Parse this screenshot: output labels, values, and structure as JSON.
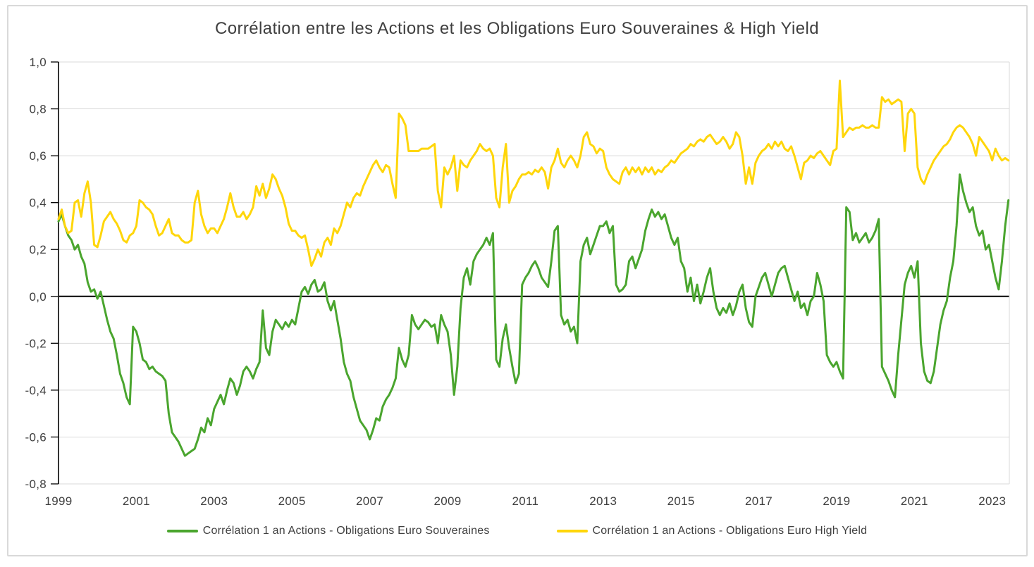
{
  "title": "Corrélation entre les Actions et les Obligations Euro Souveraines & High Yield",
  "chart_data": {
    "type": "line",
    "title": "Corrélation entre les Actions et les Obligations Euro Souveraines & High Yield",
    "xlabel": "",
    "ylabel": "",
    "grid": "horizontal",
    "legend_position": "bottom",
    "xlim": [
      1999,
      2023.44
    ],
    "ylim": [
      -0.8,
      1.0
    ],
    "x_start": 1999,
    "x_step": 0.0833333,
    "grid_color": "#d9d9d9",
    "zero_line_color": "#000000",
    "axis_color": "#000000",
    "text_color": "#3f3f3f",
    "y_ticks": [
      {
        "value": 1.0,
        "label": "1,0"
      },
      {
        "value": 0.8,
        "label": "0,8"
      },
      {
        "value": 0.6,
        "label": "0,6"
      },
      {
        "value": 0.4,
        "label": "0,4"
      },
      {
        "value": 0.2,
        "label": "0,2"
      },
      {
        "value": 0.0,
        "label": "0,0"
      },
      {
        "value": -0.2,
        "label": "-0,2"
      },
      {
        "value": -0.4,
        "label": "-0,4"
      },
      {
        "value": -0.6,
        "label": "-0,6"
      },
      {
        "value": -0.8,
        "label": "-0,8"
      }
    ],
    "x_ticks": [
      {
        "value": 1999,
        "label": "1999"
      },
      {
        "value": 2001,
        "label": "2001"
      },
      {
        "value": 2003,
        "label": "2003"
      },
      {
        "value": 2005,
        "label": "2005"
      },
      {
        "value": 2007,
        "label": "2007"
      },
      {
        "value": 2009,
        "label": "2009"
      },
      {
        "value": 2011,
        "label": "2011"
      },
      {
        "value": 2013,
        "label": "2013"
      },
      {
        "value": 2015,
        "label": "2015"
      },
      {
        "value": 2017,
        "label": "2017"
      },
      {
        "value": 2019,
        "label": "2019"
      },
      {
        "value": 2021,
        "label": "2021"
      },
      {
        "value": 2023,
        "label": "2023"
      }
    ],
    "series": [
      {
        "id": "souveraines",
        "name": "Corrélation 1 an Actions - Obligations Euro Souveraines",
        "color": "#4aa52e",
        "values": [
          0.32,
          0.35,
          0.3,
          0.26,
          0.24,
          0.2,
          0.22,
          0.17,
          0.14,
          0.06,
          0.02,
          0.03,
          -0.01,
          0.02,
          -0.04,
          -0.1,
          -0.15,
          -0.18,
          -0.25,
          -0.33,
          -0.37,
          -0.43,
          -0.46,
          -0.13,
          -0.15,
          -0.2,
          -0.27,
          -0.28,
          -0.31,
          -0.3,
          -0.32,
          -0.33,
          -0.34,
          -0.36,
          -0.5,
          -0.58,
          -0.6,
          -0.62,
          -0.65,
          -0.68,
          -0.67,
          -0.66,
          -0.65,
          -0.61,
          -0.56,
          -0.58,
          -0.52,
          -0.55,
          -0.48,
          -0.45,
          -0.42,
          -0.46,
          -0.4,
          -0.35,
          -0.37,
          -0.42,
          -0.38,
          -0.32,
          -0.3,
          -0.32,
          -0.35,
          -0.31,
          -0.28,
          -0.06,
          -0.22,
          -0.25,
          -0.15,
          -0.1,
          -0.12,
          -0.14,
          -0.11,
          -0.13,
          -0.1,
          -0.12,
          -0.05,
          0.02,
          0.04,
          0.01,
          0.05,
          0.07,
          0.02,
          0.03,
          0.06,
          -0.02,
          -0.06,
          -0.02,
          -0.1,
          -0.18,
          -0.28,
          -0.33,
          -0.36,
          -0.43,
          -0.48,
          -0.53,
          -0.55,
          -0.57,
          -0.61,
          -0.57,
          -0.52,
          -0.53,
          -0.47,
          -0.44,
          -0.42,
          -0.39,
          -0.35,
          -0.22,
          -0.27,
          -0.3,
          -0.25,
          -0.08,
          -0.12,
          -0.14,
          -0.12,
          -0.1,
          -0.11,
          -0.13,
          -0.12,
          -0.2,
          -0.08,
          -0.12,
          -0.15,
          -0.25,
          -0.42,
          -0.3,
          -0.05,
          0.08,
          0.12,
          0.05,
          0.15,
          0.18,
          0.2,
          0.22,
          0.25,
          0.22,
          0.27,
          -0.27,
          -0.3,
          -0.18,
          -0.12,
          -0.22,
          -0.3,
          -0.37,
          -0.33,
          0.05,
          0.08,
          0.1,
          0.13,
          0.15,
          0.12,
          0.08,
          0.06,
          0.04,
          0.15,
          0.28,
          0.3,
          -0.08,
          -0.12,
          -0.1,
          -0.15,
          -0.13,
          -0.2,
          0.15,
          0.22,
          0.25,
          0.18,
          0.22,
          0.26,
          0.3,
          0.3,
          0.32,
          0.27,
          0.3,
          0.05,
          0.02,
          0.03,
          0.05,
          0.15,
          0.17,
          0.12,
          0.16,
          0.2,
          0.28,
          0.33,
          0.37,
          0.34,
          0.36,
          0.33,
          0.35,
          0.3,
          0.25,
          0.22,
          0.25,
          0.15,
          0.12,
          0.02,
          0.08,
          -0.02,
          0.05,
          -0.03,
          0.02,
          0.08,
          0.12,
          0.02,
          -0.05,
          -0.08,
          -0.05,
          -0.07,
          -0.03,
          -0.08,
          -0.04,
          0.02,
          0.05,
          -0.05,
          -0.11,
          -0.13,
          0.0,
          0.04,
          0.08,
          0.1,
          0.05,
          0.0,
          0.05,
          0.1,
          0.12,
          0.13,
          0.08,
          0.03,
          -0.02,
          0.02,
          -0.05,
          -0.03,
          -0.08,
          -0.02,
          0.0,
          0.1,
          0.05,
          -0.02,
          -0.25,
          -0.28,
          -0.3,
          -0.28,
          -0.32,
          -0.35,
          0.38,
          0.36,
          0.24,
          0.27,
          0.23,
          0.25,
          0.27,
          0.23,
          0.25,
          0.28,
          0.33,
          -0.3,
          -0.33,
          -0.36,
          -0.4,
          -0.43,
          -0.25,
          -0.1,
          0.05,
          0.1,
          0.13,
          0.08,
          0.15,
          -0.2,
          -0.32,
          -0.36,
          -0.37,
          -0.32,
          -0.22,
          -0.12,
          -0.06,
          -0.02,
          0.08,
          0.15,
          0.3,
          0.52,
          0.45,
          0.4,
          0.36,
          0.38,
          0.3,
          0.26,
          0.28,
          0.2,
          0.22,
          0.15,
          0.08,
          0.03,
          0.15,
          0.3,
          0.41
        ]
      },
      {
        "id": "high-yield",
        "name": "Corrélation 1 an Actions - Obligations Euro High Yield",
        "color": "#ffd60a",
        "values": [
          0.33,
          0.37,
          0.3,
          0.27,
          0.28,
          0.4,
          0.41,
          0.34,
          0.44,
          0.49,
          0.4,
          0.22,
          0.21,
          0.26,
          0.32,
          0.34,
          0.36,
          0.33,
          0.31,
          0.28,
          0.24,
          0.23,
          0.26,
          0.27,
          0.3,
          0.41,
          0.4,
          0.38,
          0.37,
          0.35,
          0.3,
          0.26,
          0.27,
          0.3,
          0.33,
          0.27,
          0.26,
          0.26,
          0.24,
          0.23,
          0.23,
          0.24,
          0.4,
          0.45,
          0.35,
          0.3,
          0.27,
          0.29,
          0.29,
          0.27,
          0.3,
          0.33,
          0.38,
          0.44,
          0.38,
          0.34,
          0.34,
          0.36,
          0.33,
          0.35,
          0.38,
          0.47,
          0.43,
          0.48,
          0.42,
          0.46,
          0.52,
          0.5,
          0.46,
          0.43,
          0.38,
          0.31,
          0.28,
          0.28,
          0.26,
          0.25,
          0.26,
          0.2,
          0.13,
          0.16,
          0.2,
          0.17,
          0.23,
          0.25,
          0.22,
          0.29,
          0.27,
          0.3,
          0.35,
          0.4,
          0.38,
          0.42,
          0.44,
          0.43,
          0.47,
          0.5,
          0.53,
          0.56,
          0.58,
          0.55,
          0.53,
          0.56,
          0.55,
          0.48,
          0.42,
          0.78,
          0.76,
          0.73,
          0.62,
          0.62,
          0.62,
          0.62,
          0.63,
          0.63,
          0.63,
          0.64,
          0.65,
          0.45,
          0.38,
          0.55,
          0.52,
          0.55,
          0.6,
          0.45,
          0.58,
          0.56,
          0.55,
          0.58,
          0.6,
          0.62,
          0.65,
          0.63,
          0.62,
          0.63,
          0.6,
          0.42,
          0.38,
          0.55,
          0.65,
          0.4,
          0.45,
          0.47,
          0.5,
          0.52,
          0.52,
          0.53,
          0.52,
          0.54,
          0.53,
          0.55,
          0.53,
          0.46,
          0.55,
          0.58,
          0.63,
          0.57,
          0.55,
          0.58,
          0.6,
          0.58,
          0.55,
          0.6,
          0.68,
          0.7,
          0.65,
          0.64,
          0.61,
          0.63,
          0.62,
          0.55,
          0.52,
          0.5,
          0.49,
          0.48,
          0.53,
          0.55,
          0.52,
          0.55,
          0.53,
          0.55,
          0.52,
          0.55,
          0.53,
          0.55,
          0.52,
          0.54,
          0.53,
          0.55,
          0.56,
          0.58,
          0.57,
          0.59,
          0.61,
          0.62,
          0.63,
          0.65,
          0.64,
          0.66,
          0.67,
          0.66,
          0.68,
          0.69,
          0.67,
          0.65,
          0.66,
          0.68,
          0.66,
          0.63,
          0.65,
          0.7,
          0.68,
          0.6,
          0.48,
          0.55,
          0.48,
          0.57,
          0.6,
          0.62,
          0.63,
          0.65,
          0.63,
          0.66,
          0.64,
          0.66,
          0.63,
          0.62,
          0.64,
          0.6,
          0.55,
          0.5,
          0.57,
          0.58,
          0.6,
          0.59,
          0.61,
          0.62,
          0.6,
          0.58,
          0.56,
          0.62,
          0.63,
          0.92,
          0.68,
          0.7,
          0.72,
          0.71,
          0.72,
          0.72,
          0.73,
          0.72,
          0.72,
          0.73,
          0.72,
          0.72,
          0.85,
          0.83,
          0.84,
          0.82,
          0.83,
          0.84,
          0.83,
          0.62,
          0.78,
          0.8,
          0.78,
          0.55,
          0.5,
          0.48,
          0.52,
          0.55,
          0.58,
          0.6,
          0.62,
          0.64,
          0.65,
          0.67,
          0.7,
          0.72,
          0.73,
          0.72,
          0.7,
          0.68,
          0.65,
          0.6,
          0.68,
          0.66,
          0.64,
          0.62,
          0.58,
          0.63,
          0.6,
          0.58,
          0.59,
          0.58
        ]
      }
    ]
  }
}
